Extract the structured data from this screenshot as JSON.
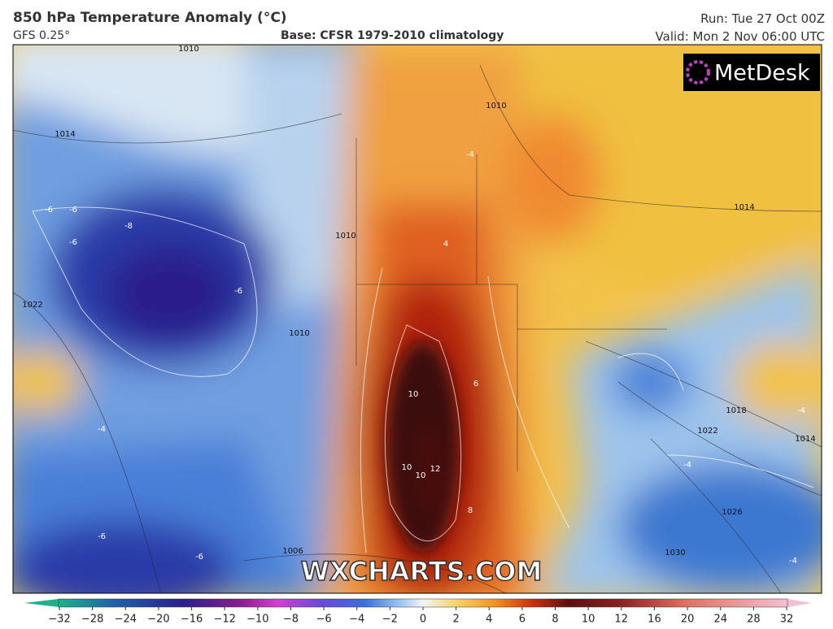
{
  "header": {
    "title": "850 hPa Temperature Anomaly (°C)",
    "model": "GFS 0.25°",
    "base": "Base: CFSR 1979-2010 climatology",
    "run": "Run: Tue 27 Oct 00Z",
    "valid": "Valid: Mon 2 Nov 06:00 UTC"
  },
  "logo": "MetDesk",
  "watermark": "WXCHARTS.COM",
  "map_labels": [
    "1010",
    "1014",
    "1022",
    "1010",
    "1010",
    "1006",
    "1010",
    "1014",
    "1018",
    "1022",
    "1014",
    "1026",
    "1030",
    "-8",
    "-6",
    "-6",
    "-6",
    "-4",
    "-6",
    "-6",
    "-4",
    "-4",
    "-4",
    "4",
    "-4",
    "10",
    "10",
    "10",
    "12",
    "8",
    "6",
    "-6"
  ],
  "colorbar": {
    "ticks": [
      {
        "value": -32,
        "label": "−32"
      },
      {
        "value": -28,
        "label": "−28"
      },
      {
        "value": -24,
        "label": "−24"
      },
      {
        "value": -20,
        "label": "−20"
      },
      {
        "value": -16,
        "label": "−16"
      },
      {
        "value": -12,
        "label": "−12"
      },
      {
        "value": -10,
        "label": "−10"
      },
      {
        "value": -8,
        "label": "−8"
      },
      {
        "value": -6,
        "label": "−6"
      },
      {
        "value": -4,
        "label": "−4"
      },
      {
        "value": -2,
        "label": "−2"
      },
      0,
      2,
      4,
      6,
      8,
      10,
      12,
      16,
      20,
      24,
      28,
      32
    ]
  }
}
